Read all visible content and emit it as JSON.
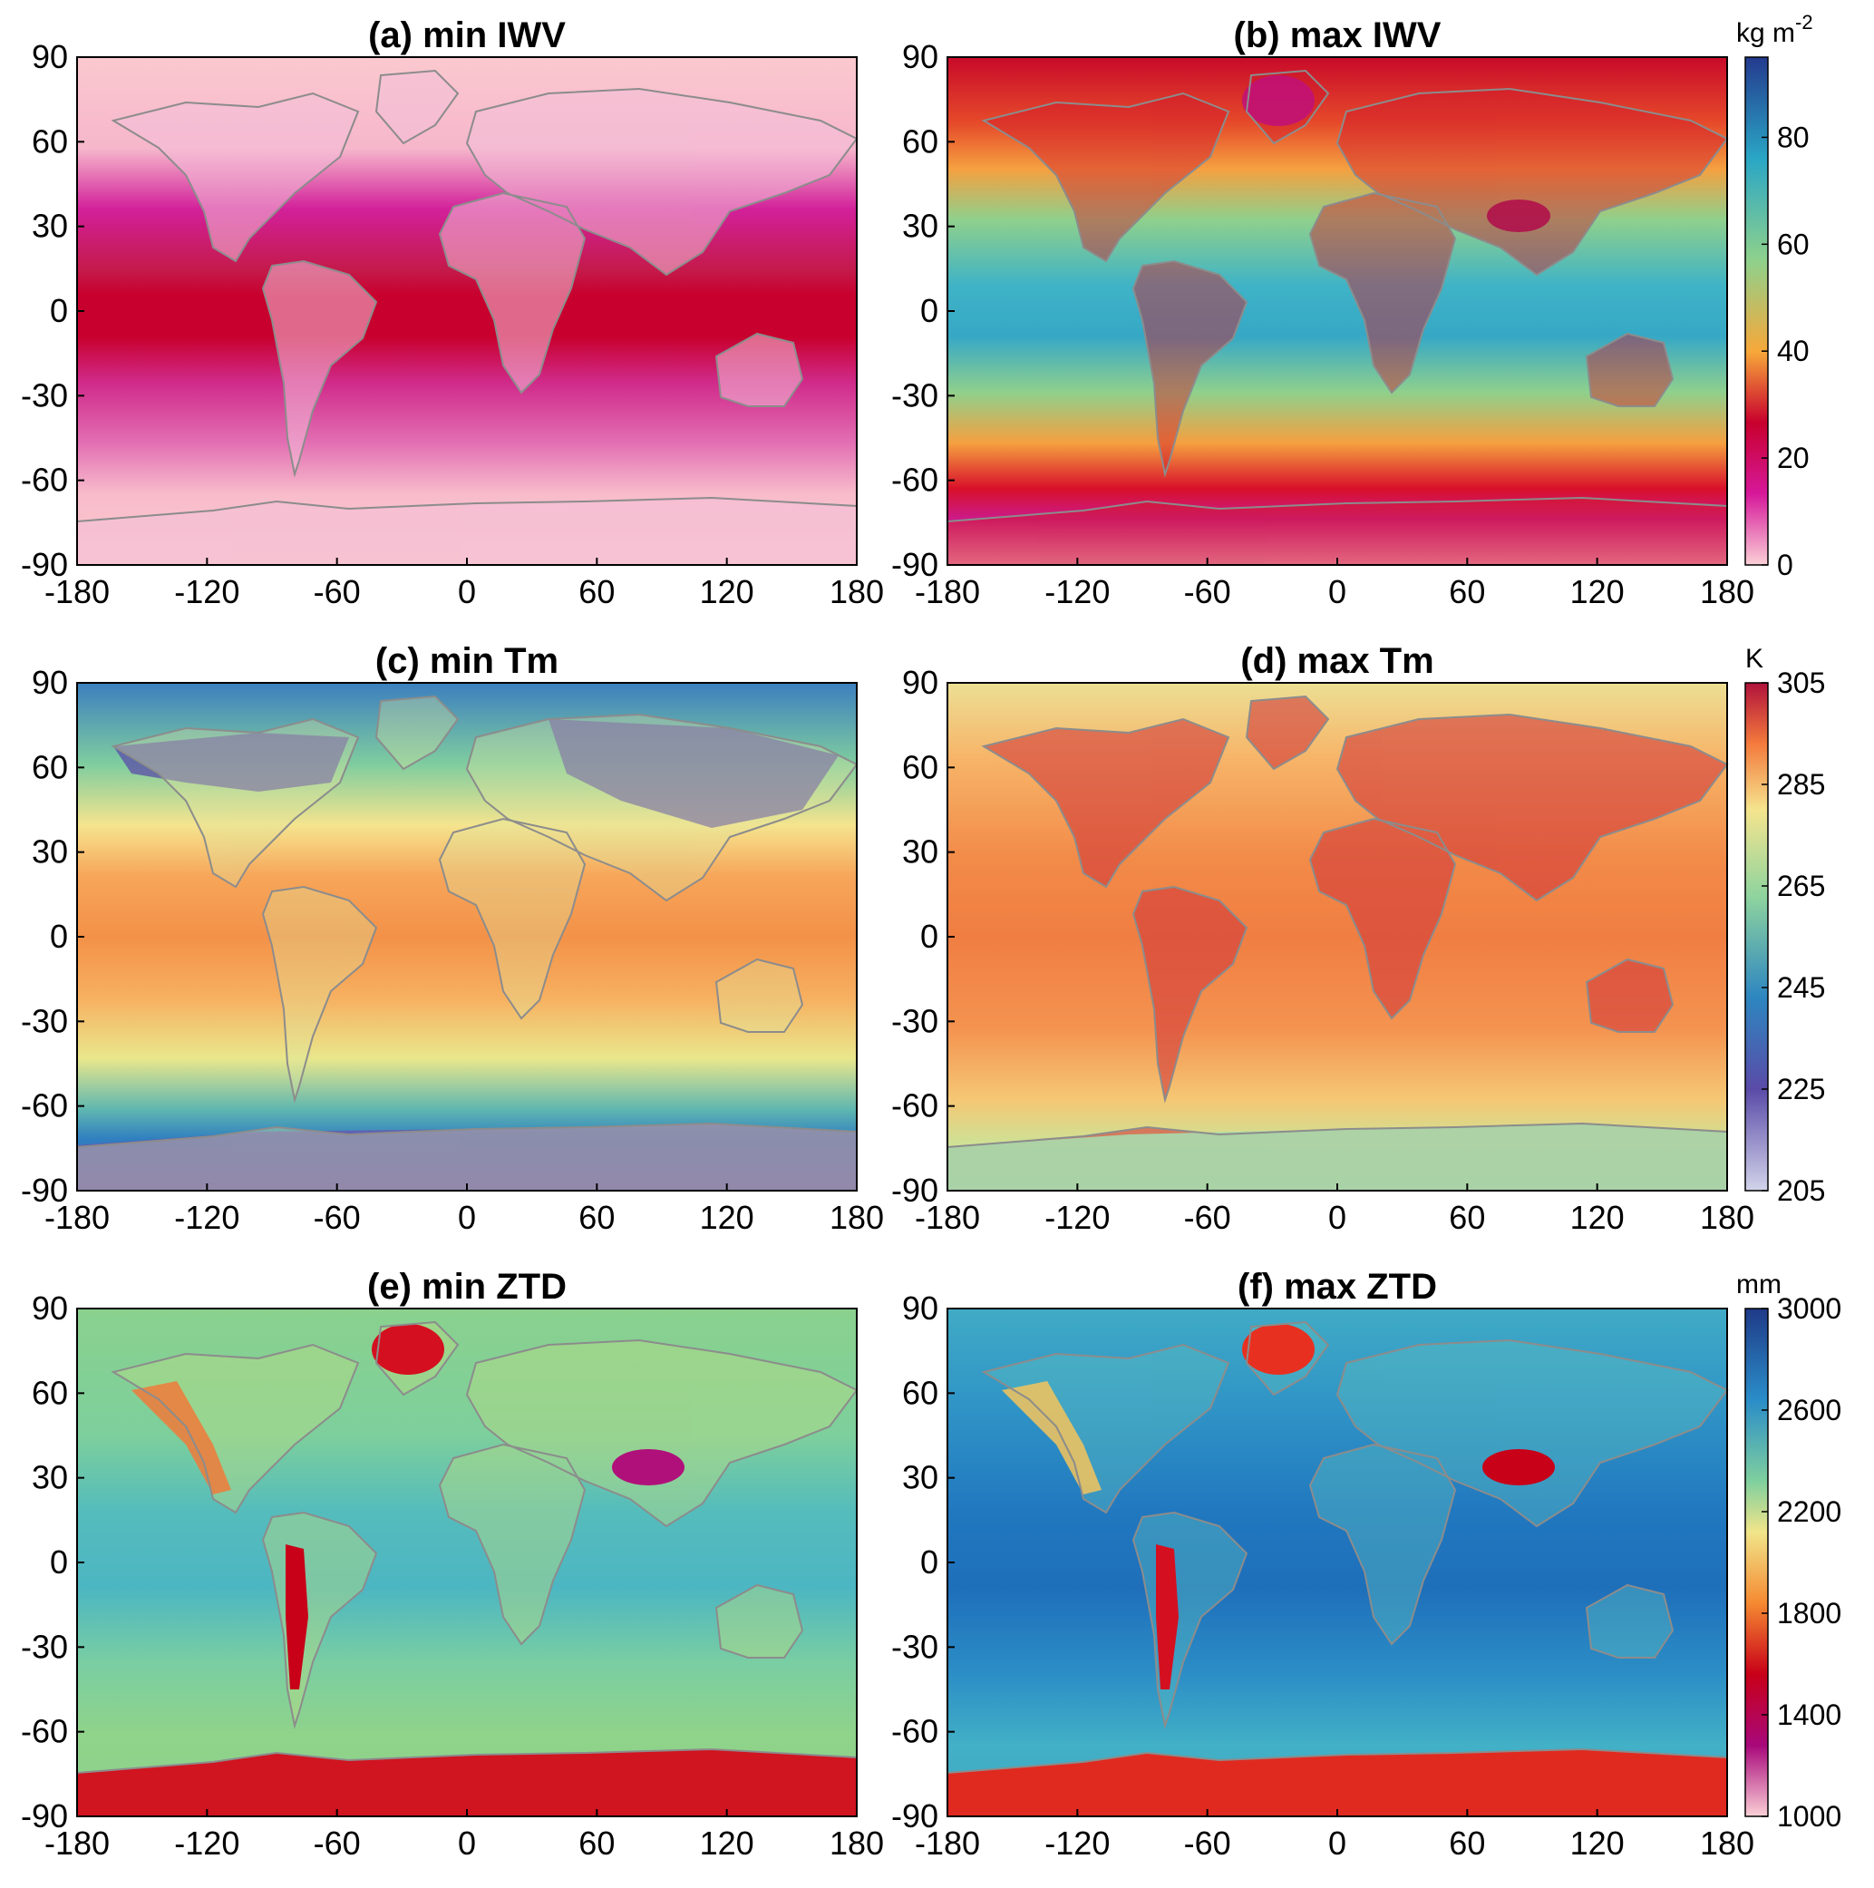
{
  "panels": [
    {
      "id": "a",
      "title": "(a) min IWV",
      "field": "min IWV",
      "colormap": "iwv"
    },
    {
      "id": "b",
      "title": "(b) max IWV",
      "field": "max IWV",
      "colormap": "iwv"
    },
    {
      "id": "c",
      "title": "(c) min Tm",
      "field": "min Tm",
      "colormap": "tm"
    },
    {
      "id": "d",
      "title": "(d) max Tm",
      "field": "max Tm",
      "colormap": "tm"
    },
    {
      "id": "e",
      "title": "(e) min ZTD",
      "field": "min ZTD",
      "colormap": "ztd"
    },
    {
      "id": "f",
      "title": "(f) max ZTD",
      "field": "max ZTD",
      "colormap": "ztd"
    }
  ],
  "axes": {
    "x_ticks": [
      "-180",
      "-120",
      "-60",
      "0",
      "60",
      "120",
      "180"
    ],
    "y_ticks": [
      "90",
      "60",
      "30",
      "0",
      "-30",
      "-60",
      "-90"
    ],
    "x_range": [
      -180,
      180
    ],
    "y_range": [
      -90,
      90
    ]
  },
  "colorbars": [
    {
      "quantity": "IWV",
      "unit_main": "kg m",
      "unit_sup": "-2",
      "range": [
        0,
        95
      ],
      "ticks": [
        "80",
        "60",
        "40",
        "20",
        "0"
      ]
    },
    {
      "quantity": "Tm",
      "unit_main": "K",
      "unit_sup": "",
      "range": [
        205,
        305
      ],
      "ticks": [
        "305",
        "285",
        "265",
        "245",
        "225",
        "205"
      ]
    },
    {
      "quantity": "ZTD",
      "unit_main": "mm",
      "unit_sup": "",
      "range": [
        1000,
        3000
      ],
      "ticks": [
        "3000",
        "2600",
        "2200",
        "1800",
        "1400",
        "1000"
      ]
    }
  ],
  "colors": {
    "iwv_scale": [
      "#fbd0d6",
      "#d6189a",
      "#c8002d",
      "#f7a83a",
      "#8ed18c",
      "#2aa6c5",
      "#243a8e"
    ],
    "tm_scale": [
      "#d2d4ea",
      "#5a4ba8",
      "#2d86c0",
      "#8fd49e",
      "#f5e48e",
      "#f47a3c",
      "#b0123b"
    ],
    "ztd_scale": [
      "#fbd0d6",
      "#a8087a",
      "#c80018",
      "#f58a32",
      "#f1e58a",
      "#7fcf9e",
      "#2a8dc8",
      "#1f3a88"
    ],
    "coastline": "#8c8c8c"
  }
}
